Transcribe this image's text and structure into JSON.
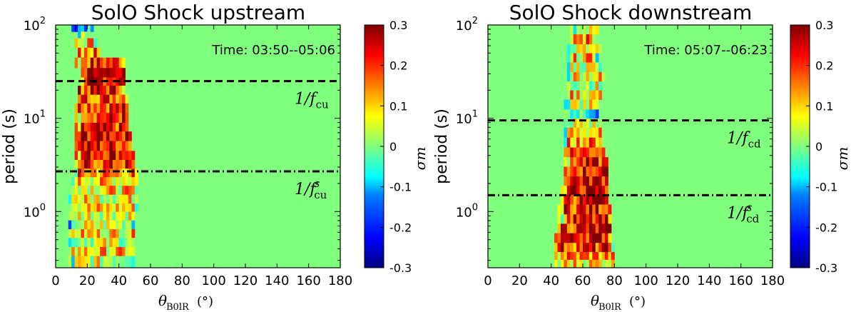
{
  "colors": {
    "background_green": "#80ff7f",
    "colormap": [
      "#00007f",
      "#0000ff",
      "#0080ff",
      "#00ffff",
      "#80ff7f",
      "#ffff00",
      "#ff8000",
      "#ff0000",
      "#7f0000"
    ]
  },
  "chart_data": [
    {
      "type": "heatmap",
      "title": "SolO Shock upstream",
      "annotation": "Time: 03:50--05:06",
      "xlabel_symbol": "θ",
      "xlabel_subscript": "B0lR",
      "xlabel_unit": "(°)",
      "ylabel": "period (s)",
      "xlim": [
        0,
        180
      ],
      "x_ticks": [
        "0",
        "20",
        "40",
        "60",
        "80",
        "100",
        "120",
        "140",
        "160",
        "180"
      ],
      "ylim": [
        0.25,
        100
      ],
      "yscale": "log",
      "y_ticks": [
        {
          "base": "10",
          "exp": "0",
          "value": 1
        },
        {
          "base": "10",
          "exp": "1",
          "value": 10
        },
        {
          "base": "10",
          "exp": "2",
          "value": 100
        }
      ],
      "lines": [
        {
          "style": "dashed",
          "period": 25,
          "label_main": "1/f",
          "label_sup": "",
          "label_sub": "cu"
        },
        {
          "style": "dashdot",
          "period": 2.7,
          "label_main": "1/f",
          "label_sup": "s",
          "label_sub": "cu"
        }
      ],
      "activity_region": {
        "comment": "rows of [period_s, theta_start_deg, theta_end_deg, mean_sigma_m]",
        "rows": [
          [
            90,
            10,
            24,
            -0.1
          ],
          [
            80,
            14,
            20,
            0.05
          ],
          [
            65,
            12,
            26,
            0.1
          ],
          [
            50,
            14,
            28,
            0.15
          ],
          [
            40,
            12,
            44,
            0.2
          ],
          [
            30,
            16,
            44,
            0.28
          ],
          [
            25,
            16,
            44,
            0.25
          ],
          [
            20,
            14,
            44,
            0.22
          ],
          [
            16,
            14,
            46,
            0.2
          ],
          [
            13,
            12,
            46,
            0.22
          ],
          [
            10,
            12,
            46,
            0.22
          ],
          [
            8,
            12,
            46,
            0.2
          ],
          [
            6.5,
            12,
            48,
            0.25
          ],
          [
            5,
            12,
            48,
            0.22
          ],
          [
            4,
            12,
            50,
            0.25
          ],
          [
            3.2,
            12,
            50,
            0.2
          ],
          [
            2.6,
            10,
            52,
            0.15
          ],
          [
            2.1,
            10,
            52,
            0.1
          ],
          [
            1.7,
            10,
            52,
            0.1
          ],
          [
            1.35,
            8,
            52,
            0.08
          ],
          [
            1.1,
            8,
            52,
            0.1
          ],
          [
            0.9,
            8,
            52,
            0.08
          ],
          [
            0.72,
            8,
            50,
            0.05
          ],
          [
            0.58,
            8,
            50,
            0.1
          ],
          [
            0.47,
            8,
            50,
            0.05
          ],
          [
            0.37,
            8,
            50,
            0.1
          ],
          [
            0.3,
            8,
            50,
            0.05
          ]
        ]
      },
      "colorbar": {
        "label": "σm",
        "range": [
          -0.3,
          0.3
        ],
        "ticks": [
          "0.3",
          "0.2",
          "0.1",
          "0",
          "-0.1",
          "-0.2",
          "-0.3"
        ]
      }
    },
    {
      "type": "heatmap",
      "title": "SolO Shock downstream",
      "annotation": "Time: 05:07--06:23",
      "xlabel_symbol": "θ",
      "xlabel_subscript": "B0lR",
      "xlabel_unit": "(°)",
      "ylabel": "period (s)",
      "xlim": [
        0,
        180
      ],
      "x_ticks": [
        "0",
        "20",
        "40",
        "60",
        "80",
        "100",
        "120",
        "140",
        "160",
        "180"
      ],
      "ylim": [
        0.25,
        100
      ],
      "yscale": "log",
      "y_ticks": [
        {
          "base": "10",
          "exp": "0",
          "value": 1
        },
        {
          "base": "10",
          "exp": "1",
          "value": 10
        },
        {
          "base": "10",
          "exp": "2",
          "value": 100
        }
      ],
      "lines": [
        {
          "style": "dashed",
          "period": 9.5,
          "label_main": "1/f",
          "label_sup": "",
          "label_sub": "cd"
        },
        {
          "style": "dashdot",
          "period": 1.5,
          "label_main": "1/f",
          "label_sup": "s",
          "label_sub": "cd"
        }
      ],
      "activity_region": {
        "comment": "rows of [period_s, theta_start_deg, theta_end_deg, mean_sigma_m]",
        "rows": [
          [
            90,
            52,
            70,
            0.1
          ],
          [
            70,
            52,
            68,
            0.15
          ],
          [
            55,
            50,
            72,
            0.05
          ],
          [
            45,
            50,
            70,
            0.1
          ],
          [
            35,
            50,
            72,
            0.05
          ],
          [
            28,
            50,
            74,
            0.1
          ],
          [
            22,
            50,
            72,
            0.05
          ],
          [
            18,
            48,
            72,
            0.1
          ],
          [
            14,
            48,
            70,
            0.05
          ],
          [
            11,
            48,
            70,
            -0.05
          ],
          [
            9,
            48,
            72,
            0.05
          ],
          [
            7,
            48,
            74,
            0.1
          ],
          [
            5.5,
            48,
            74,
            0.15
          ],
          [
            4.3,
            48,
            74,
            0.2
          ],
          [
            3.4,
            48,
            76,
            0.2
          ],
          [
            2.7,
            48,
            76,
            0.22
          ],
          [
            2.1,
            48,
            76,
            0.25
          ],
          [
            1.7,
            46,
            76,
            0.25
          ],
          [
            1.35,
            46,
            76,
            0.22
          ],
          [
            1.05,
            44,
            78,
            0.22
          ],
          [
            0.83,
            44,
            78,
            0.2
          ],
          [
            0.66,
            44,
            78,
            0.22
          ],
          [
            0.52,
            42,
            78,
            0.25
          ],
          [
            0.41,
            42,
            80,
            0.2
          ],
          [
            0.33,
            42,
            80,
            0.15
          ],
          [
            0.28,
            42,
            80,
            0.1
          ]
        ]
      },
      "colorbar": {
        "label": "σm",
        "range": [
          -0.3,
          0.3
        ],
        "ticks": [
          "0.3",
          "0.2",
          "0.1",
          "0",
          "-0.1",
          "-0.2",
          "-0.3"
        ]
      }
    }
  ]
}
